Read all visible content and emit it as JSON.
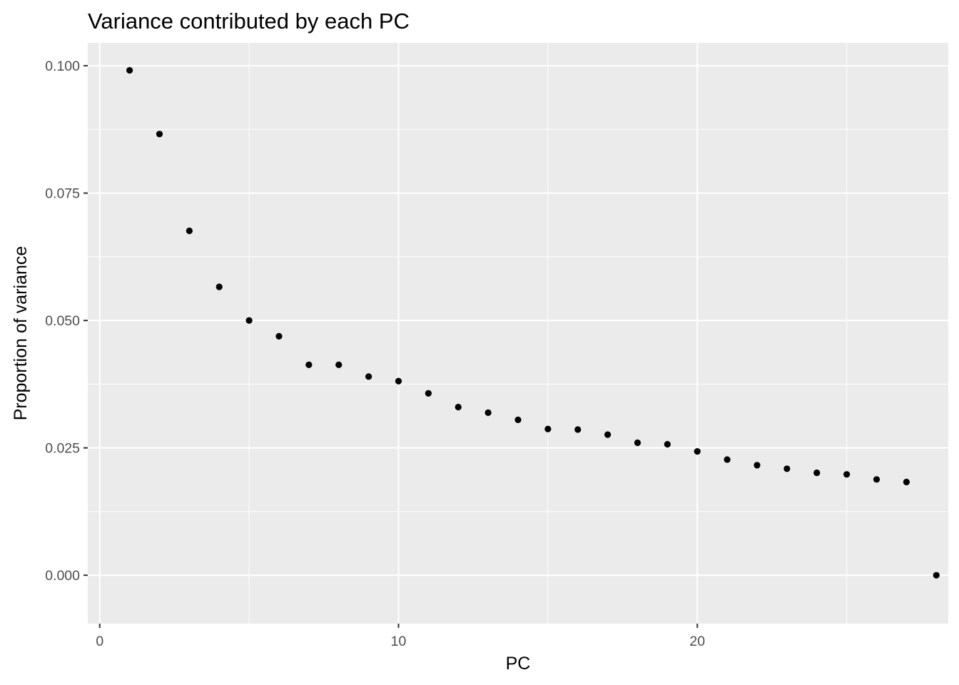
{
  "chart_data": {
    "type": "scatter",
    "title": "Variance contributed by each PC",
    "xlabel": "PC",
    "ylabel": "Proportion of variance",
    "xlim": [
      -0.4,
      28.4
    ],
    "ylim": [
      -0.0095,
      0.1045
    ],
    "x_ticks": [
      0,
      10,
      20
    ],
    "x_tick_labels": [
      "0",
      "10",
      "20"
    ],
    "y_ticks": [
      0,
      0.025,
      0.05,
      0.075,
      0.1
    ],
    "y_tick_labels": [
      "0.000",
      "0.025",
      "0.050",
      "0.075",
      "0.100"
    ],
    "x_minor_ticks": [
      5,
      15,
      25
    ],
    "y_minor_ticks": [
      0.0125,
      0.0375,
      0.0625,
      0.0875
    ],
    "grid": true,
    "panel_color": "#ebebeb",
    "grid_color": "#ffffff",
    "point_color": "#000000",
    "x": [
      1,
      2,
      3,
      4,
      5,
      6,
      7,
      8,
      9,
      10,
      11,
      12,
      13,
      14,
      15,
      16,
      17,
      18,
      19,
      20,
      21,
      22,
      23,
      24,
      25,
      26,
      27,
      28
    ],
    "y": [
      0.0991,
      0.0866,
      0.0676,
      0.0566,
      0.05,
      0.0469,
      0.0413,
      0.0413,
      0.039,
      0.0381,
      0.0357,
      0.033,
      0.0319,
      0.0305,
      0.0287,
      0.0286,
      0.0276,
      0.026,
      0.0257,
      0.0243,
      0.0227,
      0.0216,
      0.0209,
      0.0201,
      0.0198,
      0.0188,
      0.0183,
      0.0
    ]
  }
}
